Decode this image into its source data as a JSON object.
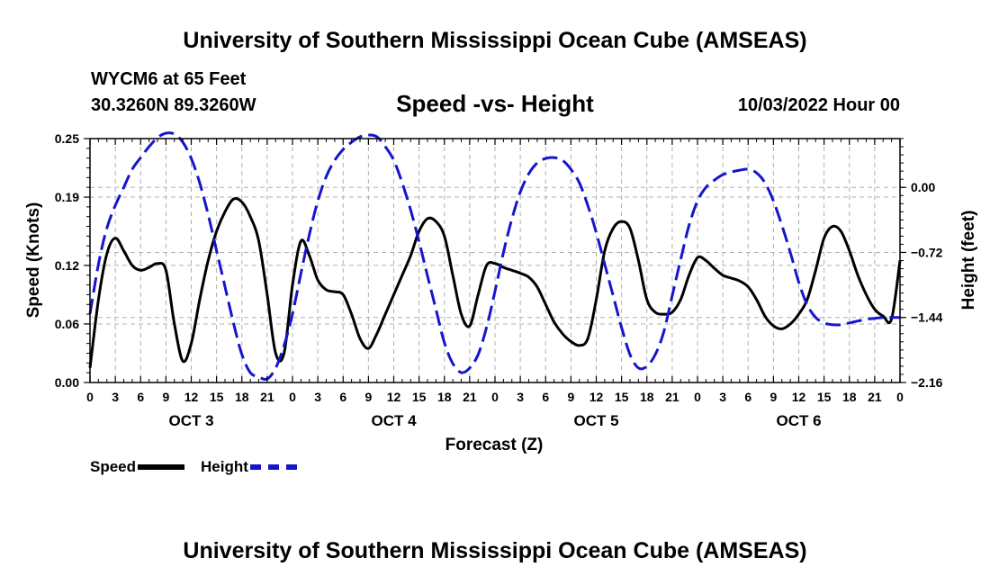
{
  "page": {
    "title": "University of Southern Mississippi Ocean Cube (AMSEAS)",
    "footer_title": "University of Southern Mississippi Ocean Cube (AMSEAS)",
    "station": "WYCM6 at 65 Feet",
    "coords": "30.3260N  89.3260W",
    "subtitle": "Speed -vs- Height",
    "datetime": "10/03/2022 Hour 00"
  },
  "legend": {
    "speed": "Speed",
    "height": "Height"
  },
  "colors": {
    "speed": "#000000",
    "height": "#1515cc",
    "grid": "#b0b0b0"
  },
  "chart_data": {
    "type": "line",
    "title": "Speed -vs- Height",
    "xlabel": "Forecast (Z)",
    "ylabel": "Speed (Knots)",
    "y2label": "Height (feet)",
    "xlim": [
      0,
      96
    ],
    "ylim": [
      0,
      0.25
    ],
    "y2lim": [
      -2.16,
      0.54
    ],
    "x_ticks": [
      0,
      3,
      6,
      9,
      12,
      15,
      18,
      21,
      24,
      27,
      30,
      33,
      36,
      39,
      42,
      45,
      48,
      51,
      54,
      57,
      60,
      63,
      66,
      69,
      72,
      75,
      78,
      81,
      84,
      87,
      90,
      93,
      96
    ],
    "x_tick_labels": [
      "0",
      "3",
      "6",
      "9",
      "12",
      "15",
      "18",
      "21",
      "0",
      "3",
      "6",
      "9",
      "12",
      "15",
      "18",
      "21",
      "0",
      "3",
      "6",
      "9",
      "12",
      "15",
      "18",
      "21",
      "0",
      "3",
      "6",
      "9",
      "12",
      "15",
      "18",
      "21",
      "0"
    ],
    "y_ticks": [
      0.0,
      0.06,
      0.12,
      0.19,
      0.25
    ],
    "y_tick_labels": [
      "0.00",
      "0.06",
      "0.12",
      "0.19",
      "0.25"
    ],
    "y2_ticks": [
      -2.16,
      -1.44,
      -0.72,
      0.0
    ],
    "y2_tick_labels": [
      "−2.16",
      "−1.44",
      "−0.72",
      "0.00"
    ],
    "day_labels": [
      {
        "x": 12,
        "label": "OCT 3"
      },
      {
        "x": 36,
        "label": "OCT 4"
      },
      {
        "x": 60,
        "label": "OCT 5"
      },
      {
        "x": 84,
        "label": "OCT 6"
      }
    ],
    "series": [
      {
        "name": "Speed",
        "axis": "left",
        "style": "solid",
        "x": [
          0,
          1,
          2,
          3,
          4,
          5,
          6,
          7,
          8,
          9,
          10,
          11,
          12,
          13,
          14,
          15,
          16,
          17,
          18,
          19,
          20,
          21,
          22,
          23,
          24,
          25,
          26,
          27,
          28,
          29,
          30,
          31,
          32,
          33,
          34,
          35,
          36,
          37,
          38,
          39,
          40,
          41,
          42,
          43,
          44,
          45,
          46,
          47,
          48,
          49,
          50,
          51,
          52,
          53,
          54,
          55,
          56,
          57,
          58,
          59,
          60,
          61,
          62,
          63,
          64,
          65,
          66,
          67,
          68,
          69,
          70,
          71,
          72,
          73,
          74,
          75,
          76,
          77,
          78,
          79,
          80,
          81,
          82,
          83,
          84,
          85,
          86,
          87,
          88,
          89,
          90,
          91,
          92,
          93,
          94,
          95,
          96
        ],
        "values": [
          0.015,
          0.085,
          0.132,
          0.148,
          0.135,
          0.12,
          0.115,
          0.118,
          0.122,
          0.115,
          0.06,
          0.022,
          0.04,
          0.085,
          0.125,
          0.155,
          0.175,
          0.188,
          0.185,
          0.17,
          0.145,
          0.09,
          0.03,
          0.03,
          0.1,
          0.145,
          0.13,
          0.105,
          0.095,
          0.093,
          0.09,
          0.07,
          0.045,
          0.035,
          0.05,
          0.07,
          0.09,
          0.11,
          0.13,
          0.155,
          0.168,
          0.165,
          0.15,
          0.11,
          0.07,
          0.058,
          0.09,
          0.12,
          0.122,
          0.118,
          0.115,
          0.112,
          0.108,
          0.098,
          0.08,
          0.062,
          0.05,
          0.042,
          0.038,
          0.045,
          0.085,
          0.135,
          0.158,
          0.165,
          0.158,
          0.125,
          0.085,
          0.072,
          0.07,
          0.072,
          0.085,
          0.11,
          0.128,
          0.125,
          0.117,
          0.11,
          0.107,
          0.104,
          0.098,
          0.085,
          0.068,
          0.058,
          0.055,
          0.06,
          0.07,
          0.085,
          0.115,
          0.148,
          0.16,
          0.155,
          0.135,
          0.11,
          0.09,
          0.075,
          0.068,
          0.065,
          0.125
        ]
      },
      {
        "name": "Height",
        "axis": "right",
        "style": "dashed",
        "x": [
          0,
          1,
          2,
          3,
          4,
          5,
          6,
          7,
          8,
          9,
          10,
          11,
          12,
          13,
          14,
          15,
          16,
          17,
          18,
          19,
          20,
          21,
          22,
          23,
          24,
          25,
          26,
          27,
          28,
          29,
          30,
          31,
          32,
          33,
          34,
          35,
          36,
          37,
          38,
          39,
          40,
          41,
          42,
          43,
          44,
          45,
          46,
          47,
          48,
          49,
          50,
          51,
          52,
          53,
          54,
          55,
          56,
          57,
          58,
          59,
          60,
          61,
          62,
          63,
          64,
          65,
          66,
          67,
          68,
          69,
          70,
          71,
          72,
          73,
          74,
          75,
          76,
          77,
          78,
          79,
          80,
          81,
          82,
          83,
          84,
          85,
          86,
          87,
          88,
          89,
          90,
          91,
          92,
          93,
          94,
          95,
          96
        ],
        "values": [
          -1.4,
          -0.85,
          -0.45,
          -0.2,
          0.0,
          0.2,
          0.33,
          0.45,
          0.55,
          0.6,
          0.59,
          0.5,
          0.32,
          0.05,
          -0.3,
          -0.7,
          -1.1,
          -1.5,
          -1.85,
          -2.05,
          -2.1,
          -2.12,
          -2.0,
          -1.75,
          -1.4,
          -0.95,
          -0.52,
          -0.15,
          0.12,
          0.3,
          0.42,
          0.5,
          0.56,
          0.58,
          0.56,
          0.45,
          0.3,
          0.05,
          -0.25,
          -0.6,
          -0.98,
          -1.35,
          -1.72,
          -1.95,
          -2.05,
          -2.0,
          -1.85,
          -1.55,
          -1.15,
          -0.72,
          -0.35,
          -0.05,
          0.15,
          0.27,
          0.32,
          0.33,
          0.3,
          0.2,
          0.05,
          -0.2,
          -0.5,
          -0.85,
          -1.2,
          -1.55,
          -1.85,
          -2.0,
          -1.98,
          -1.85,
          -1.6,
          -1.2,
          -0.8,
          -0.42,
          -0.15,
          0.0,
          0.08,
          0.14,
          0.17,
          0.19,
          0.2,
          0.16,
          0.05,
          -0.15,
          -0.42,
          -0.72,
          -1.05,
          -1.3,
          -1.44,
          -1.5,
          -1.52,
          -1.52,
          -1.5,
          -1.48,
          -1.46,
          -1.45,
          -1.44,
          -1.44,
          -1.44
        ]
      }
    ]
  }
}
